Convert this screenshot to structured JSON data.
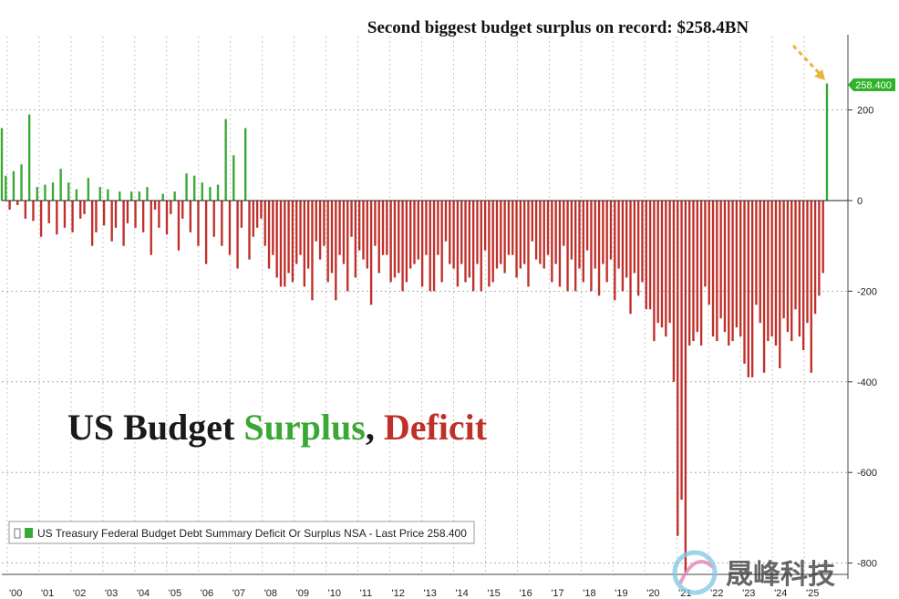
{
  "annotation": "Second biggest budget surplus on record: $258.4BN",
  "title": {
    "part1": "US Budget ",
    "part2": "Surplus",
    "part3": ", ",
    "part4": "Deficit"
  },
  "legend": {
    "label": "US Treasury Federal Budget Debt Summary Deficit Or Surplus NSA - Last Price 258.400"
  },
  "last_price_label": "258.400",
  "watermark": {
    "cn": "晟峰科技"
  },
  "colors": {
    "surplus": "#3aa835",
    "deficit": "#c0302b",
    "title_dark": "#1a1a1a",
    "annotation_arrow": "#e8b53c",
    "last_tag": "#2fb32b"
  },
  "chart_data": {
    "type": "bar",
    "title": "US Budget Surplus, Deficit",
    "xlabel": "",
    "ylabel": "",
    "ylim": [
      -820,
      360
    ],
    "yticks": [
      200,
      0,
      -200,
      -400,
      -600,
      -800
    ],
    "x_year_labels": [
      "'00",
      "'01",
      "'02",
      "'03",
      "'04",
      "'05",
      "'06",
      "'07",
      "'08",
      "'09",
      "'10",
      "'11",
      "'12",
      "'13",
      "'14",
      "'15",
      "'16",
      "'17",
      "'18",
      "'19",
      "'20",
      "'21",
      "'22",
      "'23",
      "'24",
      "'25"
    ],
    "series": [
      {
        "name": "US Treasury Federal Budget Debt Summary Deficit Or Surplus NSA",
        "values": [
          160,
          55,
          -20,
          65,
          -10,
          80,
          -40,
          190,
          -45,
          30,
          -80,
          35,
          -50,
          40,
          -75,
          70,
          -60,
          40,
          -70,
          25,
          -40,
          -30,
          50,
          -100,
          -70,
          30,
          -55,
          25,
          -90,
          -60,
          20,
          -100,
          -50,
          20,
          -60,
          20,
          -70,
          30,
          -120,
          -20,
          -60,
          15,
          -75,
          -30,
          20,
          -110,
          -40,
          60,
          -70,
          55,
          -100,
          40,
          -140,
          30,
          -80,
          35,
          -100,
          180,
          -120,
          100,
          -150,
          -60,
          160,
          -130,
          -80,
          -60,
          -40,
          -100,
          -150,
          -120,
          -170,
          -190,
          -190,
          -160,
          -180,
          -140,
          -120,
          -190,
          -150,
          -220,
          -90,
          -130,
          -100,
          -180,
          -160,
          -220,
          -120,
          -140,
          -200,
          -80,
          -170,
          -110,
          -130,
          -150,
          -230,
          -100,
          -160,
          -120,
          -120,
          -180,
          -170,
          -160,
          -200,
          -180,
          -150,
          -140,
          -130,
          -190,
          -120,
          -200,
          -200,
          -120,
          -180,
          -90,
          -140,
          -150,
          -190,
          -140,
          -180,
          -170,
          -200,
          -140,
          -200,
          -110,
          -190,
          -180,
          -150,
          -140,
          -160,
          -120,
          -120,
          -170,
          -150,
          -140,
          -190,
          -90,
          -130,
          -140,
          -150,
          -120,
          -180,
          -140,
          -190,
          -100,
          -200,
          -130,
          -200,
          -150,
          -180,
          -110,
          -200,
          -150,
          -210,
          -140,
          -180,
          -130,
          -220,
          -150,
          -200,
          -170,
          -250,
          -160,
          -210,
          -180,
          -240,
          -240,
          -310,
          -270,
          -280,
          -300,
          -270,
          -400,
          -740,
          -660,
          -820,
          -320,
          -310,
          -290,
          -320,
          -190,
          -230,
          -300,
          -310,
          -260,
          -290,
          -320,
          -310,
          -280,
          -300,
          -360,
          -390,
          -390,
          -230,
          -270,
          -380,
          -310,
          -300,
          -320,
          -370,
          -260,
          -290,
          -310,
          -240,
          -300,
          -330,
          -270,
          -380,
          -250,
          -210,
          -160,
          258.4
        ]
      }
    ]
  }
}
